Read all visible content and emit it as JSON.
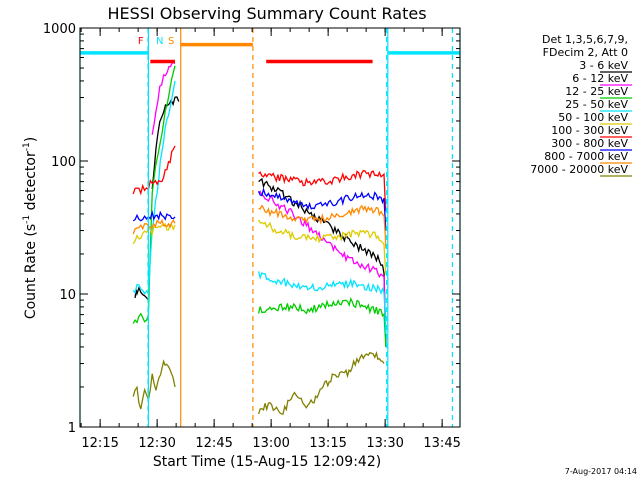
{
  "chart_data": {
    "type": "line",
    "title": "HESSI Observing Summary Count Rates",
    "xlabel": "Start Time (15-Aug-15 12:09:42)",
    "ylabel_main": "Count Rate (s",
    "ylabel_sup1": "-1",
    "ylabel_mid": " detector",
    "ylabel_sup2": "-1",
    "ylabel_end": ")",
    "x_unit": "minutes after 12:09:42",
    "x_range": [
      0,
      100
    ],
    "y_scale": "log",
    "y_range": [
      1,
      1000
    ],
    "x_ticks": [
      {
        "label": "12:15",
        "value": 5.3
      },
      {
        "label": "12:30",
        "value": 20.3
      },
      {
        "label": "12:45",
        "value": 35.3
      },
      {
        "label": "13:00",
        "value": 50.3
      },
      {
        "label": "13:15",
        "value": 65.3
      },
      {
        "label": "13:30",
        "value": 80.3
      },
      {
        "label": "13:45",
        "value": 95.3
      }
    ],
    "y_ticks": [
      {
        "label": "1",
        "value": 1
      },
      {
        "label": "10",
        "value": 10
      },
      {
        "label": "100",
        "value": 100
      },
      {
        "label": "1000",
        "value": 1000
      }
    ],
    "legend": {
      "position": "right",
      "header_1": "Det 1,3,5,6,7,9,",
      "header_2": "FDecim 2, Att 0"
    },
    "series": [
      {
        "name": "3 - 6 keV",
        "color": "#000000",
        "segments": [
          {
            "x": [
              14.5,
              15,
              16,
              17,
              18
            ],
            "y": [
              10,
              10.5,
              11,
              10,
              9
            ]
          },
          {
            "x": [
              19,
              20,
              21,
              22,
              23,
              24,
              25,
              26
            ],
            "y": [
              60,
              120,
              200,
              240,
              260,
              280,
              290,
              280
            ]
          },
          {
            "x": [
              47,
              50,
              55,
              60,
              65,
              70,
              75,
              78,
              80,
              80.5
            ],
            "y": [
              70,
              65,
              52,
              42,
              33,
              26,
              21,
              19,
              15,
              4
            ]
          }
        ]
      },
      {
        "name": "6 - 12 keV",
        "color": "#ff00ff",
        "segments": [
          {
            "x": [
              19,
              20,
              21,
              22,
              23,
              25
            ],
            "y": [
              150,
              250,
              350,
              430,
              480,
              540
            ]
          },
          {
            "x": [
              47,
              50,
              55,
              60,
              65,
              70,
              75,
              78,
              80,
              80.5
            ],
            "y": [
              58,
              52,
              42,
              32,
              24,
              19,
              16,
              15,
              13,
              5
            ]
          }
        ]
      },
      {
        "name": "12 - 25 keV",
        "color": "#00cc00",
        "segments": [
          {
            "x": [
              14,
              15,
              16,
              17,
              18,
              19,
              22,
              25
            ],
            "y": [
              5.8,
              6.5,
              7,
              6.5,
              7,
              60,
              200,
              520
            ]
          },
          {
            "x": [
              47,
              50,
              55,
              60,
              65,
              70,
              75,
              78,
              80,
              80.5
            ],
            "y": [
              7.5,
              8,
              8,
              7.5,
              8.5,
              9,
              8,
              7.5,
              7,
              4
            ]
          }
        ]
      },
      {
        "name": "25 - 50 keV",
        "color": "#00e5ff",
        "segments": [
          {
            "x": [
              14,
              15,
              16,
              17,
              18,
              19,
              22,
              25
            ],
            "y": [
              10.5,
              11,
              11,
              10,
              10,
              30,
              150,
              400
            ]
          },
          {
            "x": [
              47,
              50,
              55,
              60,
              65,
              70,
              75,
              78,
              80,
              80.5
            ],
            "y": [
              14,
              13,
              12,
              11,
              11.5,
              12,
              11.5,
              11,
              10.5,
              5
            ]
          }
        ]
      },
      {
        "name": "50 - 100 keV",
        "color": "#ddcc00",
        "segments": [
          {
            "x": [
              14,
              15,
              16,
              17,
              18,
              19,
              22,
              25
            ],
            "y": [
              24,
              26,
              27,
              28,
              29,
              30,
              32,
              33
            ]
          },
          {
            "x": [
              47,
              50,
              55,
              60,
              65,
              70,
              75,
              78,
              80,
              80.5
            ],
            "y": [
              35,
              32,
              28,
              26,
              26,
              28,
              29,
              27,
              25,
              14
            ]
          }
        ]
      },
      {
        "name": "100 - 300 keV",
        "color": "#ff0000",
        "segments": [
          {
            "x": [
              14,
              15,
              16,
              17,
              18,
              19,
              22,
              25
            ],
            "y": [
              58,
              60,
              60,
              62,
              65,
              68,
              75,
              130
            ]
          },
          {
            "x": [
              47,
              50,
              55,
              60,
              65,
              70,
              75,
              78,
              80,
              80.5
            ],
            "y": [
              80,
              78,
              72,
              68,
              70,
              76,
              80,
              78,
              76,
              42
            ]
          }
        ]
      },
      {
        "name": "300 - 800 keV",
        "color": "#0000ff",
        "segments": [
          {
            "x": [
              14,
              15,
              16,
              17,
              18,
              19,
              22,
              25
            ],
            "y": [
              37,
              38,
              38,
              38,
              39,
              39,
              39,
              38
            ]
          },
          {
            "x": [
              47,
              50,
              55,
              60,
              65,
              70,
              75,
              78,
              80,
              80.5
            ],
            "y": [
              60,
              55,
              50,
              46,
              47,
              52,
              56,
              54,
              52,
              30
            ]
          }
        ]
      },
      {
        "name": "800 - 7000 keV",
        "color": "#ff8800",
        "segments": [
          {
            "x": [
              14,
              15,
              16,
              17,
              18,
              19,
              22,
              25
            ],
            "y": [
              30,
              31,
              31,
              32,
              32,
              33,
              34,
              34
            ]
          },
          {
            "x": [
              47,
              50,
              55,
              60,
              65,
              70,
              75,
              78,
              80,
              80.5
            ],
            "y": [
              45,
              42,
              38,
              36,
              37,
              41,
              44,
              42,
              40,
              22
            ]
          }
        ]
      },
      {
        "name": "7000 - 20000 keV",
        "color": "#808000",
        "segments": [
          {
            "x": [
              14,
              15,
              16,
              17,
              18,
              19,
              20,
              22,
              24,
              25
            ],
            "y": [
              1.6,
              2,
              1.3,
              2,
              1.5,
              2.5,
              2,
              3,
              2.5,
              2
            ]
          },
          {
            "x": [
              47,
              50,
              53,
              56,
              60,
              64,
              66,
              68,
              70,
              72,
              75,
              78,
              80
            ],
            "y": [
              1.3,
              1.5,
              1.2,
              1.8,
              1.4,
              2,
              2.3,
              2.5,
              2.5,
              3,
              3.5,
              3.5,
              3
            ]
          }
        ]
      }
    ],
    "markers": {
      "night_cyan": [
        {
          "x": [
            0,
            18
          ],
          "y": 650
        },
        {
          "x": [
            81,
            100
          ],
          "y": 650
        }
      ],
      "cyan_vlines": [
        0,
        18,
        81,
        100
      ],
      "cyan_dashed": [
        17.9,
        80.7,
        98
      ],
      "saa_orange": {
        "x": [
          26.5,
          45.5
        ],
        "y": 750
      },
      "orange_vlines": [
        26.5
      ],
      "orange_dashed": [
        45.5
      ],
      "flare_red": [
        {
          "x": [
            18.5,
            25
          ],
          "y": 560
        },
        {
          "x": [
            49,
            77
          ],
          "y": 560
        }
      ],
      "letters": [
        {
          "text": "F",
          "x": 16,
          "color": "#ff0000"
        },
        {
          "text": "N",
          "x": 21,
          "color": "#00e5ff"
        },
        {
          "text": "S",
          "x": 24,
          "color": "#ff8800"
        }
      ]
    },
    "footer_date": "7-Aug-2017 04:14"
  }
}
